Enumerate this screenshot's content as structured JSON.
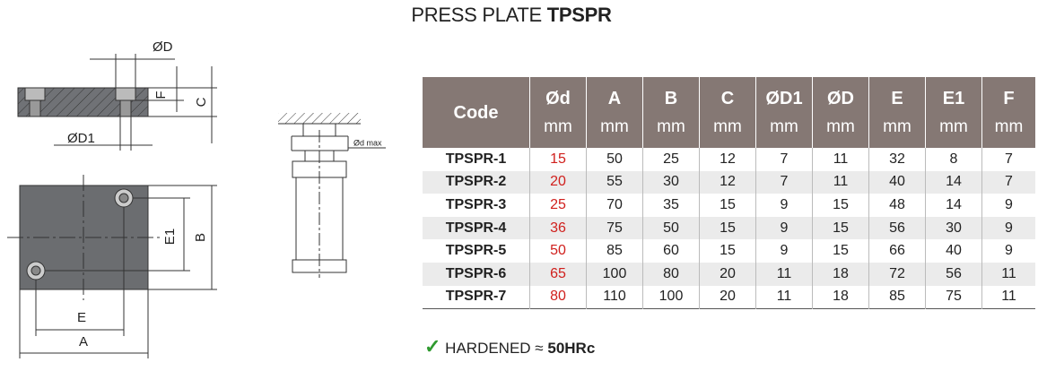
{
  "header": {
    "title": "PRESS PLATE",
    "title_bold": "TPSPR"
  },
  "drawing": {
    "labels": {
      "D": "ØD",
      "F": "F",
      "C": "C",
      "D1": "ØD1",
      "E1": "E1",
      "B": "B",
      "E": "E",
      "A": "A",
      "dmax": "Ød max"
    }
  },
  "table": {
    "columns": [
      {
        "name": "Code"
      },
      {
        "name": "Ød",
        "unit": "mm"
      },
      {
        "name": "A",
        "unit": "mm"
      },
      {
        "name": "B",
        "unit": "mm"
      },
      {
        "name": "C",
        "unit": "mm"
      },
      {
        "name": "ØD1",
        "unit": "mm"
      },
      {
        "name": "ØD",
        "unit": "mm"
      },
      {
        "name": "E",
        "unit": "mm"
      },
      {
        "name": "E1",
        "unit": "mm"
      },
      {
        "name": "F",
        "unit": "mm"
      }
    ],
    "rows": [
      [
        "TPSPR-1",
        15,
        50,
        25,
        12,
        7,
        11,
        32,
        8,
        7
      ],
      [
        "TPSPR-2",
        20,
        55,
        30,
        12,
        7,
        11,
        40,
        14,
        7
      ],
      [
        "TPSPR-3",
        25,
        70,
        35,
        15,
        9,
        15,
        48,
        14,
        9
      ],
      [
        "TPSPR-4",
        36,
        75,
        50,
        15,
        9,
        15,
        56,
        30,
        9
      ],
      [
        "TPSPR-5",
        50,
        85,
        60,
        15,
        9,
        15,
        66,
        40,
        9
      ],
      [
        "TPSPR-6",
        65,
        100,
        80,
        20,
        11,
        18,
        72,
        56,
        11
      ],
      [
        "TPSPR-7",
        80,
        110,
        100,
        20,
        11,
        18,
        85,
        75,
        11
      ]
    ]
  },
  "note": {
    "text": "HARDENED ≈",
    "bold": "50HRc"
  }
}
